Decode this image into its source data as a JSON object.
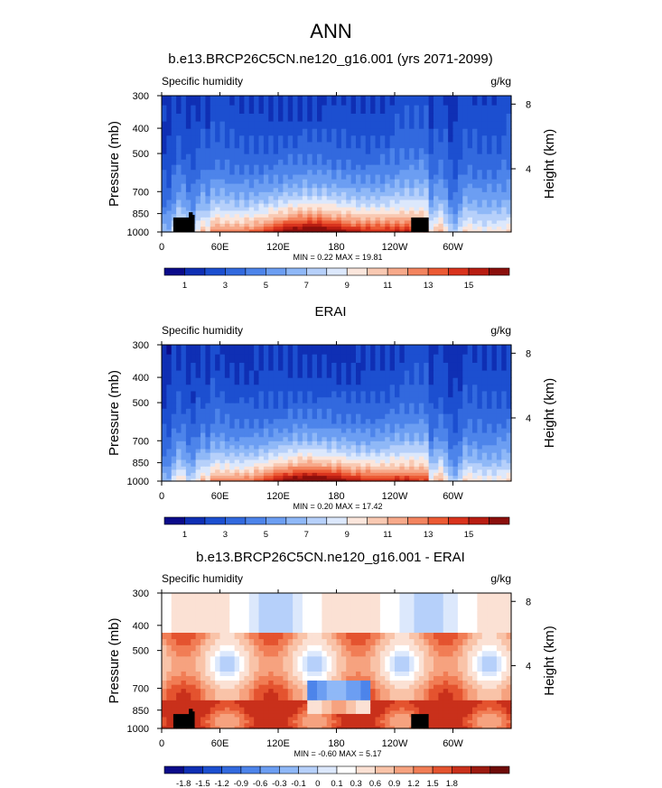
{
  "figure": {
    "title": "ANN"
  },
  "palettes": {
    "absolute": [
      "#0b0b8a",
      "#0f2fb4",
      "#1c4fd0",
      "#3269de",
      "#4d84ea",
      "#6c9ef2",
      "#8fb8f7",
      "#b6d0fa",
      "#dce8fc",
      "#fbe6dc",
      "#f9c9b2",
      "#f7a98a",
      "#f3845f",
      "#ec5a34",
      "#d9331d",
      "#b81d12",
      "#8b0f0c"
    ],
    "difference": [
      "#0b0b8a",
      "#0f2fb4",
      "#1c4fd0",
      "#3269de",
      "#4d84ea",
      "#6c9ef2",
      "#8fb8f7",
      "#b6d0fa",
      "#dce8fc",
      "#ffffff",
      "#fbe1d4",
      "#f9c3a8",
      "#f6a27f",
      "#f17d55",
      "#e4532f",
      "#c9301b",
      "#9c1a10",
      "#6e0b08"
    ]
  },
  "chart_data": [
    {
      "type": "heatmap",
      "panel": "model",
      "title": "b.e13.BRCP26C5CN.ne120_g16.001 (yrs 2071-2099)",
      "variable": "Specific humidity",
      "units": "g/kg",
      "ylabel": "Pressure (mb)",
      "ylabel_right": "Height (km)",
      "x_ticks": [
        "0",
        "60E",
        "120E",
        "180",
        "120W",
        "60W"
      ],
      "x_tick_lon": [
        0,
        60,
        120,
        180,
        240,
        300
      ],
      "xlim": [
        0,
        360
      ],
      "y_ticks": [
        "300",
        "400",
        "500",
        "700",
        "850",
        "1000"
      ],
      "y_tick_p": [
        300,
        400,
        500,
        700,
        850,
        1000
      ],
      "ylim": [
        1000,
        300
      ],
      "right_ticks": [
        "8",
        "4"
      ],
      "right_tick_km": [
        8,
        4
      ],
      "stats": "MIN =  0.22  MAX =  19.81",
      "min": 0.22,
      "max": 19.81,
      "colorbar_labels": [
        "1",
        "3",
        "5",
        "7",
        "9",
        "11",
        "13",
        "15"
      ],
      "palette": "absolute"
    },
    {
      "type": "heatmap",
      "panel": "obs",
      "title": "ERAI",
      "variable": "Specific humidity",
      "units": "g/kg",
      "ylabel": "Pressure (mb)",
      "ylabel_right": "Height (km)",
      "x_ticks": [
        "0",
        "60E",
        "120E",
        "180",
        "120W",
        "60W"
      ],
      "x_tick_lon": [
        0,
        60,
        120,
        180,
        240,
        300
      ],
      "xlim": [
        0,
        360
      ],
      "y_ticks": [
        "300",
        "400",
        "500",
        "700",
        "850",
        "1000"
      ],
      "y_tick_p": [
        300,
        400,
        500,
        700,
        850,
        1000
      ],
      "ylim": [
        1000,
        300
      ],
      "right_ticks": [
        "8",
        "4"
      ],
      "right_tick_km": [
        8,
        4
      ],
      "stats": "MIN =  0.20  MAX =  17.42",
      "min": 0.2,
      "max": 17.42,
      "colorbar_labels": [
        "1",
        "3",
        "5",
        "7",
        "9",
        "11",
        "13",
        "15"
      ],
      "palette": "absolute"
    },
    {
      "type": "heatmap",
      "panel": "diff",
      "title": "b.e13.BRCP26C5CN.ne120_g16.001 - ERAI",
      "variable": "Specific humidity",
      "units": "g/kg",
      "ylabel": "Pressure (mb)",
      "ylabel_right": "Height (km)",
      "x_ticks": [
        "0",
        "60E",
        "120E",
        "180",
        "120W",
        "60W"
      ],
      "x_tick_lon": [
        0,
        60,
        120,
        180,
        240,
        300
      ],
      "xlim": [
        0,
        360
      ],
      "y_ticks": [
        "300",
        "400",
        "500",
        "700",
        "850",
        "1000"
      ],
      "y_tick_p": [
        300,
        400,
        500,
        700,
        850,
        1000
      ],
      "ylim": [
        1000,
        300
      ],
      "right_ticks": [
        "8",
        "4"
      ],
      "right_tick_km": [
        8,
        4
      ],
      "stats": "MIN = -0.60  MAX =  5.17",
      "min": -0.6,
      "max": 5.17,
      "colorbar_labels": [
        "-1.8",
        "-1.5",
        "-1.2",
        "-0.9",
        "-0.6",
        "-0.3",
        "-0.1",
        "0",
        "0.1",
        "0.3",
        "0.6",
        "0.9",
        "1.2",
        "1.5",
        "1.8"
      ],
      "palette": "difference"
    }
  ]
}
